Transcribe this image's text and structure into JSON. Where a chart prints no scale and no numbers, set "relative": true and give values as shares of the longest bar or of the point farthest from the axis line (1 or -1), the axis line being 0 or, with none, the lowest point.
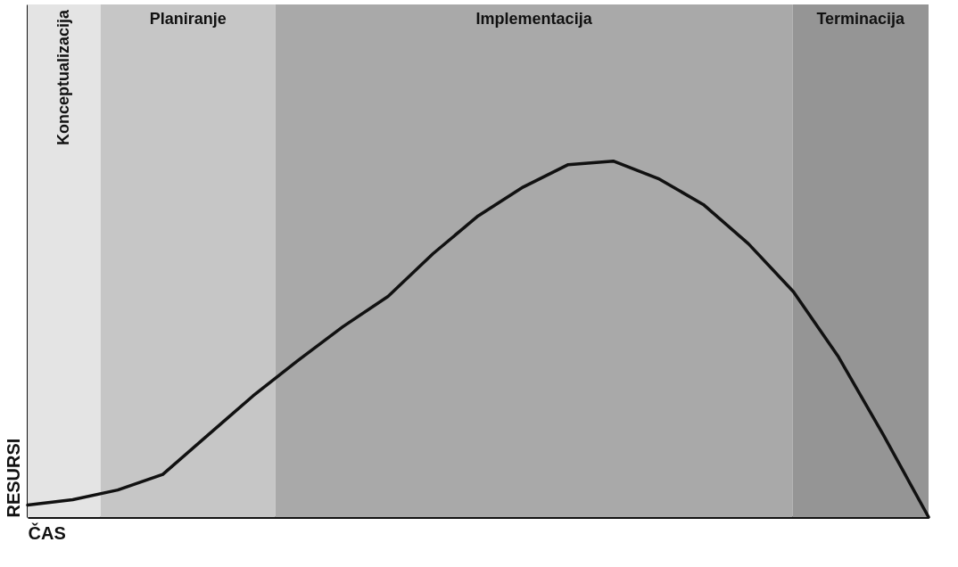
{
  "chart_data": {
    "type": "line",
    "relative": true,
    "xlabel": "ČAS",
    "ylabel": "RESURSI",
    "tick_labels": false,
    "grid": false,
    "marker": "none",
    "line_style": "solid",
    "categories": [
      null,
      null,
      null,
      null,
      null,
      null,
      null,
      null,
      null,
      null,
      null,
      null,
      null,
      null,
      null,
      null,
      null,
      null,
      null,
      null,
      null
    ],
    "series": [
      {
        "color": "#111111",
        "values": [
          0.034,
          0.049,
          0.076,
          0.12,
          0.23,
          0.34,
          0.44,
          0.535,
          0.62,
          0.74,
          0.846,
          0.927,
          0.99,
          1.0,
          0.951,
          0.878,
          0.768,
          0.633,
          0.45,
          0.23,
          0
        ]
      }
    ],
    "annotations": [
      "Konceptualizacija",
      "Planiranje",
      "Implementacija",
      "Terminacija"
    ]
  }
}
